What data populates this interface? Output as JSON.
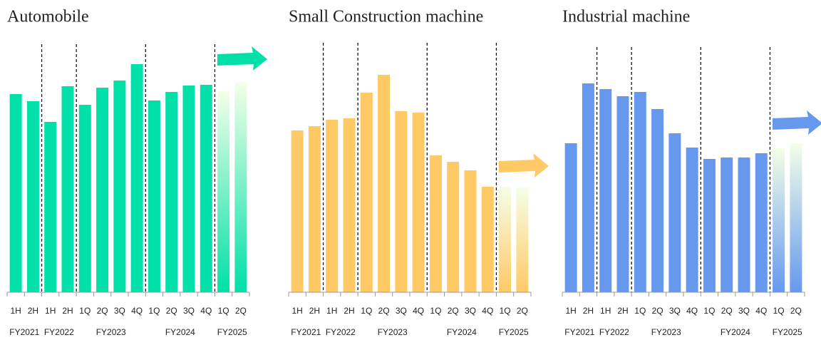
{
  "chart_data": [
    {
      "type": "bar",
      "title": "Automobile",
      "color": "#00e0a8",
      "ylim": [
        0,
        400
      ],
      "groups": [
        {
          "name": "FY2021",
          "categories": [
            "1H",
            "2H"
          ]
        },
        {
          "name": "FY2022",
          "categories": [
            "1H",
            "2H"
          ]
        },
        {
          "name": "FY2023",
          "categories": [
            "1Q",
            "2Q",
            "3Q",
            "4Q"
          ]
        },
        {
          "name": "FY2024",
          "categories": [
            "1Q",
            "2Q",
            "3Q",
            "4Q"
          ]
        },
        {
          "name": "FY2025",
          "categories": [
            "1Q",
            "2Q"
          ],
          "style": "gradient"
        }
      ],
      "values": [
        278,
        268,
        239,
        289,
        263,
        287,
        297,
        320,
        269,
        281,
        290,
        291,
        282,
        295
      ]
    },
    {
      "type": "bar",
      "title": "Small Construction machine",
      "color": "#ffc966",
      "ylim": [
        0,
        400
      ],
      "groups": [
        {
          "name": "FY2021",
          "categories": [
            "1H",
            "2H"
          ]
        },
        {
          "name": "FY2022",
          "categories": [
            "1H",
            "2H"
          ]
        },
        {
          "name": "FY2023",
          "categories": [
            "1Q",
            "2Q",
            "3Q",
            "4Q"
          ]
        },
        {
          "name": "FY2024",
          "categories": [
            "1Q",
            "2Q",
            "3Q",
            "4Q"
          ]
        },
        {
          "name": "FY2025",
          "categories": [
            "1Q",
            "2Q"
          ],
          "style": "gradient"
        }
      ],
      "values": [
        227,
        233,
        242,
        244,
        280,
        305,
        254,
        252,
        192,
        183,
        171,
        148,
        148,
        147
      ]
    },
    {
      "type": "bar",
      "title": "Industrial machine",
      "color": "#6699ee",
      "ylim": [
        0,
        400
      ],
      "groups": [
        {
          "name": "FY2021",
          "categories": [
            "1H",
            "2H"
          ]
        },
        {
          "name": "FY2022",
          "categories": [
            "1H",
            "2H"
          ]
        },
        {
          "name": "FY2023",
          "categories": [
            "1Q",
            "2Q",
            "3Q",
            "4Q"
          ]
        },
        {
          "name": "FY2024",
          "categories": [
            "1Q",
            "2Q",
            "3Q",
            "4Q"
          ]
        },
        {
          "name": "FY2025",
          "categories": [
            "1Q",
            "2Q"
          ],
          "style": "gradient"
        }
      ],
      "values": [
        209,
        293,
        285,
        275,
        281,
        257,
        223,
        203,
        187,
        189,
        189,
        195,
        202,
        209
      ]
    }
  ]
}
